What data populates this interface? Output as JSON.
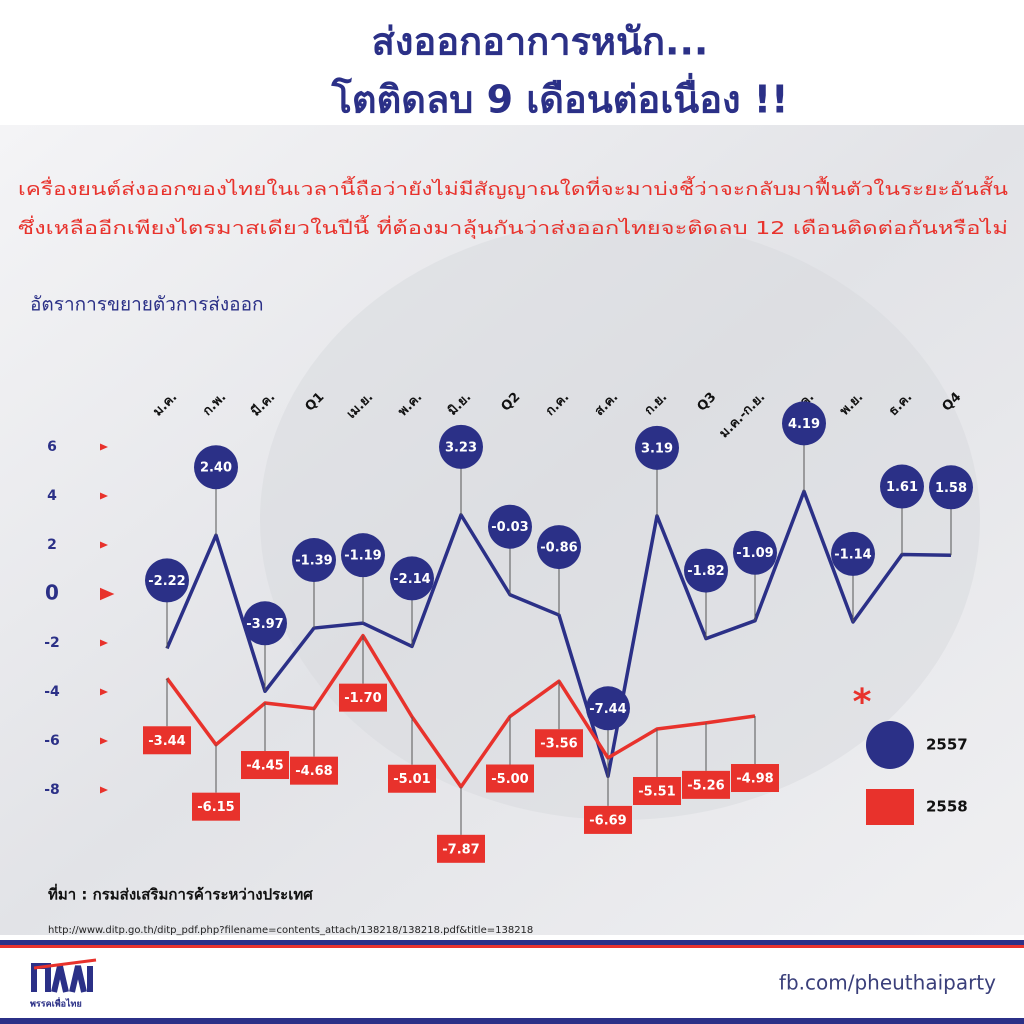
{
  "chart_data": {
    "type": "line",
    "title": [
      "ส่งออกอาการหนัก...",
      "โตติดลบ 9 เดือนต่อเนื่อง !!"
    ],
    "subtitle": [
      "เครื่องยนต์ส่งออกของไทยในเวลานี้ถือว่ายังไม่มีสัญญาณใดที่จะมาบ่งชี้ว่าจะกลับมาฟื้นตัวในระยะอันสั้น",
      "ซึ่งเหลืออีกเพียงไตรมาสเดียวในปีนี้ ที่ต้องมาลุ้นกันว่าส่งออกไทยจะติดลบ 12 เดือนติดต่อกันหรือไม่"
    ],
    "y_label": "อัตราการขยายตัวการส่งออก",
    "categories": [
      "ม.ค.",
      "ก.พ.",
      "มี.ค.",
      "Q1",
      "เม.ย.",
      "พ.ค.",
      "มิ.ย.",
      "Q2",
      "ก.ค.",
      "ส.ค.",
      "ก.ย.",
      "Q3",
      "ม.ค.-ก.ย.",
      "ต.ค.",
      "พ.ย.",
      "ธ.ค.",
      "Q4"
    ],
    "series": [
      {
        "name": "2557",
        "color": "#2b3087",
        "values": [
          -2.22,
          2.4,
          -3.97,
          -1.39,
          -1.19,
          -2.14,
          3.23,
          -0.03,
          -0.86,
          -7.44,
          3.19,
          -1.82,
          -1.09,
          4.19,
          -1.14,
          1.61,
          1.58
        ],
        "value_labels": [
          "-2.22",
          "2.40",
          "-3.97",
          "-1.39",
          "-1.19",
          "-2.14",
          "3.23",
          "-0.03",
          "-0.86",
          "-7.44",
          "3.19",
          "-1.82",
          "-1.09",
          "4.19",
          "-1.14",
          "1.61",
          "1.58"
        ]
      },
      {
        "name": "2558",
        "color": "#e8322c",
        "values": [
          -3.44,
          -6.15,
          -4.45,
          -4.68,
          -1.7,
          -5.01,
          -7.87,
          -5.0,
          -3.56,
          -6.69,
          -5.51,
          -5.26,
          -4.98,
          null,
          null,
          null,
          null
        ],
        "value_labels": [
          "-3.44",
          "-6.15",
          "-4.45",
          "-4.68",
          "-1.70",
          "-5.01",
          "-7.87",
          "-5.00",
          "-3.56",
          "-6.69",
          "-5.51",
          "-5.26",
          "-4.98",
          null,
          null,
          null,
          null
        ]
      }
    ],
    "ylim": [
      -8,
      6
    ],
    "yticks": [
      6,
      4,
      2,
      0,
      -2,
      -4,
      -6,
      -8
    ],
    "legend_annotation": "*",
    "source": "ที่มา : กรมส่งเสริมการค้าระหว่างประเทศ",
    "source_url": "http://www.ditp.go.th/ditp_pdf.php?filename=contents_attach/138218/138218.pdf&title=138218",
    "logo_text": "พรรคเพื่อไทย",
    "footer": "fb.com/pheuthaiparty"
  }
}
